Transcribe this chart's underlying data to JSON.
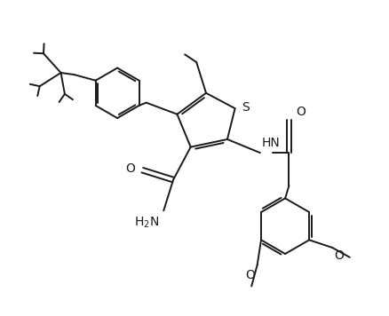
{
  "bg_color": "#ffffff",
  "line_color": "#1a1a1a",
  "bond_width": 1.4,
  "font_size": 9,
  "fig_width": 4.38,
  "fig_height": 3.56,
  "dpi": 100,
  "xlim": [
    0,
    10
  ],
  "ylim": [
    0,
    8.13
  ]
}
